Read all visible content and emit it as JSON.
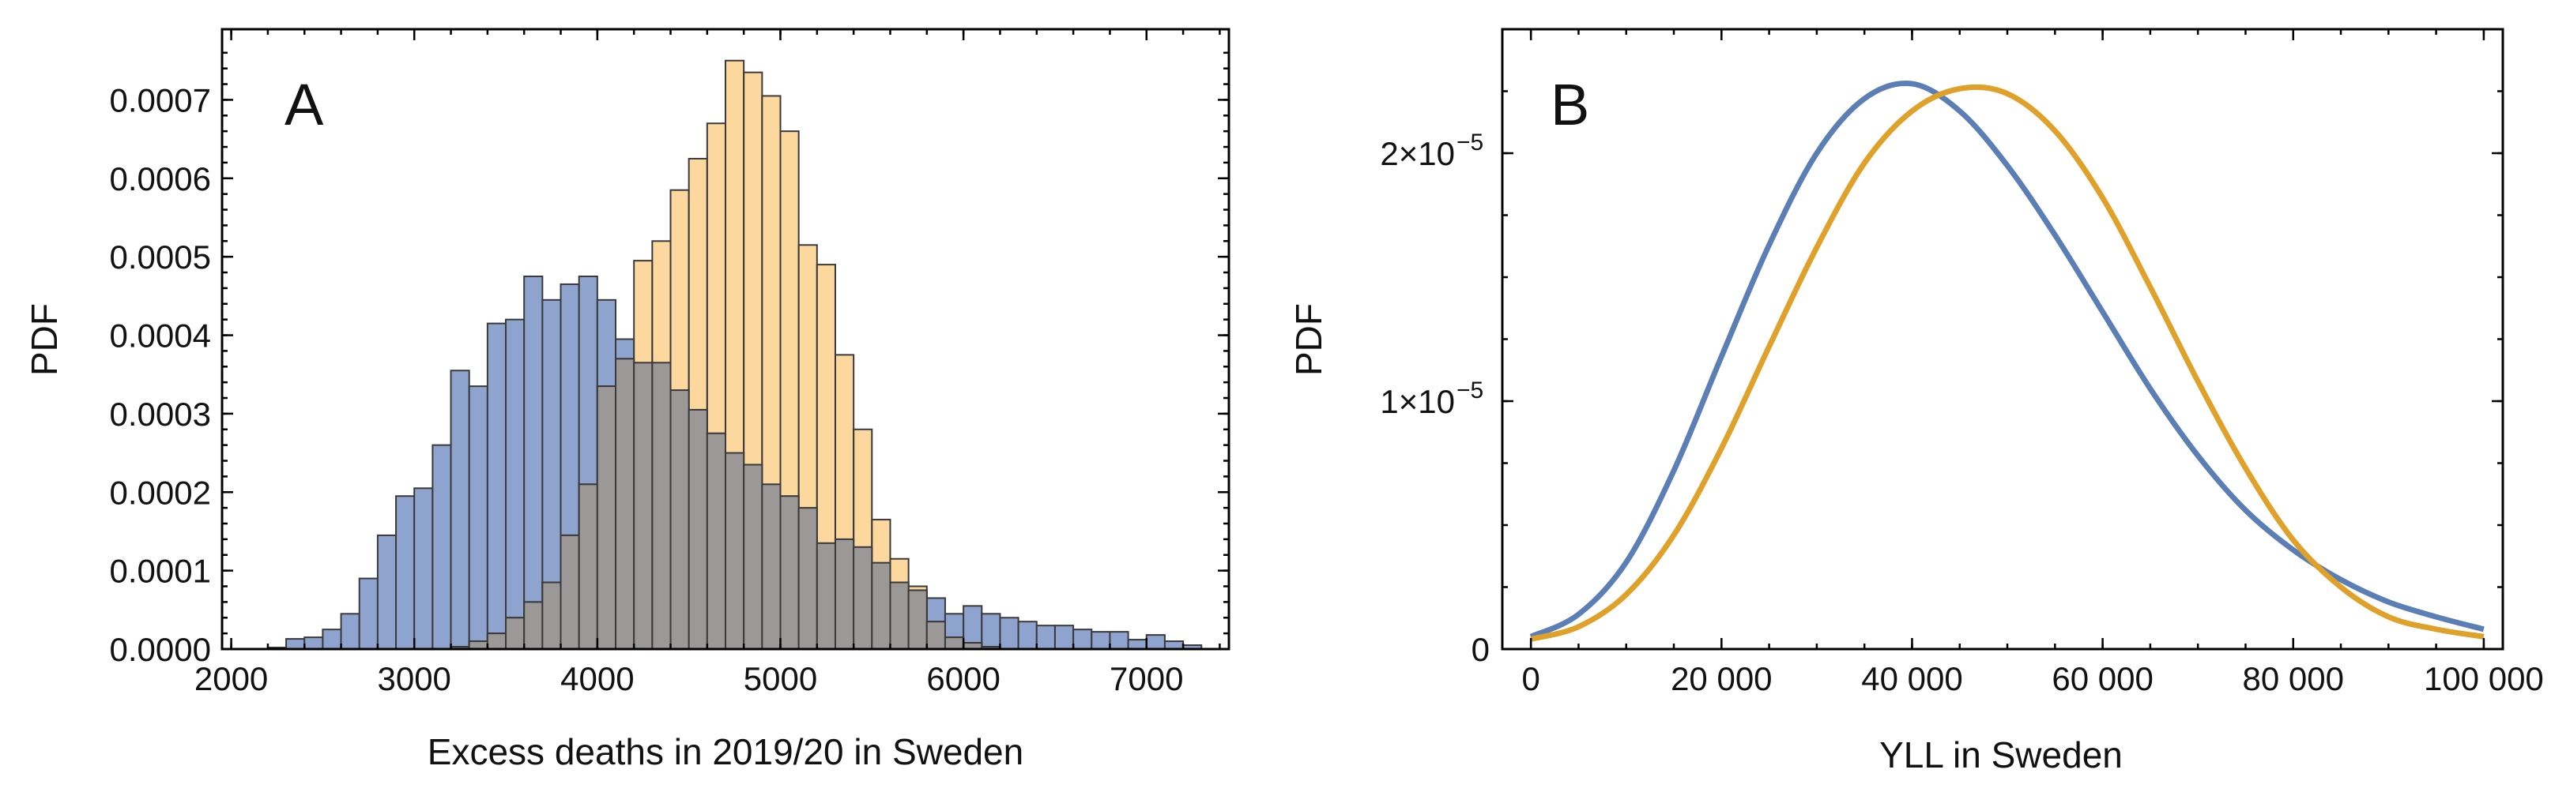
{
  "chart_data": [
    {
      "type": "histogram",
      "panel_label": "A",
      "xlabel": "Excess deaths in 2019/20 in Sweden",
      "ylabel": "PDF",
      "xlim": [
        1950,
        7450
      ],
      "ylim": [
        0,
        0.00079
      ],
      "bin_width": 100,
      "bin_start": 2200,
      "x_ticks": [
        2000,
        3000,
        4000,
        5000,
        6000,
        7000
      ],
      "x_tick_labels": [
        "2000",
        "3000",
        "4000",
        "5000",
        "6000",
        "7000"
      ],
      "y_ticks": [
        0,
        0.0001,
        0.0002,
        0.0003,
        0.0004,
        0.0005,
        0.0006,
        0.0007
      ],
      "y_tick_labels": [
        "0.0000",
        "0.0001",
        "0.0002",
        "0.0003",
        "0.0004",
        "0.0005",
        "0.0006",
        "0.0007"
      ],
      "series": [
        {
          "name": "blue",
          "color": "#8fa3cf",
          "values": [
            2e-06,
            1.3e-05,
            1.5e-05,
            2.5e-05,
            4.5e-05,
            9e-05,
            0.000145,
            0.000195,
            0.000205,
            0.00026,
            0.000355,
            0.000335,
            0.000415,
            0.00042,
            0.000475,
            0.000445,
            0.000465,
            0.000475,
            0.000445,
            0.000395,
            0.000365,
            0.000365,
            0.00033,
            0.000305,
            0.000275,
            0.00025,
            0.000235,
            0.00021,
            0.000195,
            0.00018,
            0.000135,
            0.00014,
            0.00013,
            0.00011,
            8.5e-05,
            7.5e-05,
            6.5e-05,
            4.5e-05,
            5.5e-05,
            4.5e-05,
            4e-05,
            3.5e-05,
            3e-05,
            3e-05,
            2.5e-05,
            2.2e-05,
            2.2e-05,
            1.2e-05,
            1.8e-05,
            1e-05,
            5e-06
          ]
        },
        {
          "name": "orange",
          "color": "#fbcb7d",
          "values": [
            0,
            0,
            0,
            0,
            0,
            0,
            0,
            0,
            0,
            0,
            3e-06,
            1e-05,
            2e-05,
            4e-05,
            6e-05,
            8.5e-05,
            0.000145,
            0.00021,
            0.000335,
            0.00037,
            0.000495,
            0.00052,
            0.000585,
            0.000625,
            0.00067,
            0.00075,
            0.000735,
            0.000705,
            0.00066,
            0.000515,
            0.00049,
            0.000375,
            0.00028,
            0.000165,
            0.000115,
            8e-05,
            3.5e-05,
            1.5e-05,
            8e-06,
            3e-06,
            0,
            0,
            0,
            0,
            0,
            0,
            0,
            0,
            0,
            0,
            0
          ]
        }
      ]
    },
    {
      "type": "line",
      "panel_label": "B",
      "xlabel": "YLL in Sweden",
      "ylabel": "PDF",
      "xlim": [
        -3000,
        102000
      ],
      "ylim": [
        0,
        2.5e-05
      ],
      "x_ticks": [
        0,
        20000,
        40000,
        60000,
        80000,
        100000
      ],
      "x_tick_labels": [
        "0",
        "20 000",
        "40 000",
        "60 000",
        "80 000",
        "100 000"
      ],
      "y_ticks": [
        0,
        1e-05,
        2e-05
      ],
      "y_tick_labels": [
        "0",
        "1×10",
        "2×10"
      ],
      "y_tick_exponent": "−5",
      "series": [
        {
          "name": "blue",
          "color": "#5b7fb5",
          "x": [
            0,
            5000,
            10000,
            15000,
            20000,
            25000,
            30000,
            35000,
            40000,
            45000,
            50000,
            55000,
            60000,
            65000,
            70000,
            75000,
            80000,
            85000,
            90000,
            95000,
            100000
          ],
          "y": [
            5e-07,
            1.4e-06,
            3.5e-06,
            7.2e-06,
            1.18e-05,
            1.63e-05,
            2e-05,
            2.22e-05,
            2.28e-05,
            2.17e-05,
            1.95e-05,
            1.67e-05,
            1.36e-05,
            1.05e-05,
            7.8e-06,
            5.6e-06,
            4e-06,
            2.8e-06,
            1.9e-06,
            1.3e-06,
            8e-07
          ]
        },
        {
          "name": "orange",
          "color": "#e0a12a",
          "x": [
            0,
            5000,
            10000,
            15000,
            20000,
            25000,
            30000,
            35000,
            40000,
            45000,
            50000,
            55000,
            60000,
            65000,
            70000,
            75000,
            80000,
            85000,
            90000,
            95000,
            100000
          ],
          "y": [
            4e-07,
            9e-07,
            2.2e-06,
            4.6e-06,
            8.1e-06,
            1.22e-05,
            1.62e-05,
            1.96e-05,
            2.17e-05,
            2.26e-05,
            2.24e-05,
            2.09e-05,
            1.82e-05,
            1.46e-05,
            1.08e-05,
            7.3e-06,
            4.4e-06,
            2.5e-06,
            1.3e-06,
            8e-07,
            5e-07
          ]
        }
      ]
    }
  ]
}
